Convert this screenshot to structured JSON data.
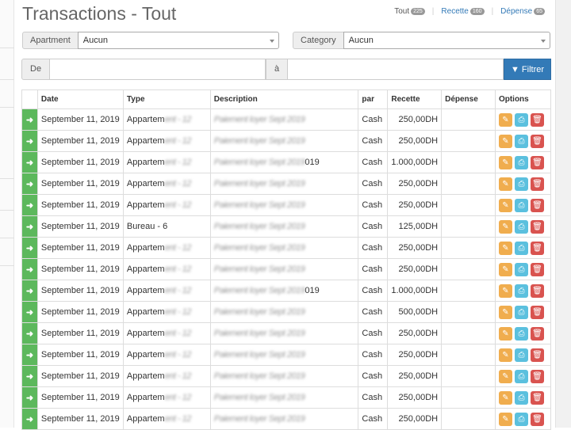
{
  "title": "Transactions - Tout",
  "counts": [
    {
      "label": "Tout",
      "count": "225"
    },
    {
      "label": "Recette",
      "count": "160"
    },
    {
      "label": "Dépense",
      "count": "65"
    }
  ],
  "filters": {
    "apartment_label": "Apartment",
    "apartment_value": "Aucun",
    "category_label": "Category",
    "category_value": "Aucun",
    "from_label": "De",
    "to_label": "à",
    "button": "Filtrer"
  },
  "columns": [
    "Date",
    "Type",
    "Description",
    "par",
    "Recette",
    "Dépense",
    "Options"
  ],
  "rows": [
    {
      "date": "September 11, 2019",
      "type": "Appartem",
      "desc": "",
      "par": "Cash",
      "recette": "250,00DH",
      "depense": ""
    },
    {
      "date": "September 11, 2019",
      "type": "Appartem",
      "desc": "",
      "par": "Cash",
      "recette": "250,00DH",
      "depense": ""
    },
    {
      "date": "September 11, 2019",
      "type": "Appartem",
      "desc": "019",
      "par": "Cash",
      "recette": "1.000,00DH",
      "depense": ""
    },
    {
      "date": "September 11, 2019",
      "type": "Appartem",
      "desc": "",
      "par": "Cash",
      "recette": "250,00DH",
      "depense": ""
    },
    {
      "date": "September 11, 2019",
      "type": "Appartem",
      "desc": "",
      "par": "Cash",
      "recette": "250,00DH",
      "depense": ""
    },
    {
      "date": "September 11, 2019",
      "type": "Bureau - 6",
      "desc": "",
      "par": "Cash",
      "recette": "125,00DH",
      "depense": ""
    },
    {
      "date": "September 11, 2019",
      "type": "Appartem",
      "desc": "",
      "par": "Cash",
      "recette": "250,00DH",
      "depense": ""
    },
    {
      "date": "September 11, 2019",
      "type": "Appartem",
      "desc": "",
      "par": "Cash",
      "recette": "250,00DH",
      "depense": ""
    },
    {
      "date": "September 11, 2019",
      "type": "Appartem",
      "desc": "019",
      "par": "Cash",
      "recette": "1.000,00DH",
      "depense": ""
    },
    {
      "date": "September 11, 2019",
      "type": "Appartem",
      "desc": "",
      "par": "Cash",
      "recette": "500,00DH",
      "depense": ""
    },
    {
      "date": "September 11, 2019",
      "type": "Appartem",
      "desc": "",
      "par": "Cash",
      "recette": "250,00DH",
      "depense": ""
    },
    {
      "date": "September 11, 2019",
      "type": "Appartem",
      "desc": "",
      "par": "Cash",
      "recette": "250,00DH",
      "depense": ""
    },
    {
      "date": "September 11, 2019",
      "type": "Appartem",
      "desc": "",
      "par": "Cash",
      "recette": "250,00DH",
      "depense": ""
    },
    {
      "date": "September 11, 2019",
      "type": "Appartem",
      "desc": "",
      "par": "Cash",
      "recette": "250,00DH",
      "depense": ""
    },
    {
      "date": "September 11, 2019",
      "type": "Appartem",
      "desc": "",
      "par": "Cash",
      "recette": "250,00DH",
      "depense": ""
    }
  ]
}
